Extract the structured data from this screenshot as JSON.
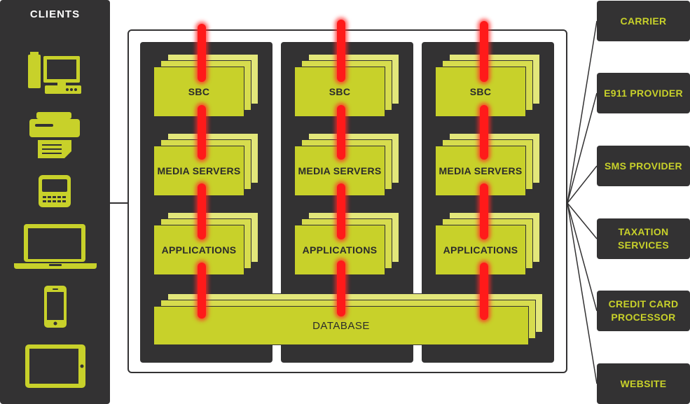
{
  "clients": {
    "title": "CLIENTS",
    "icons": [
      "desktop-computer-icon",
      "printer-fax-icon",
      "feature-phone-icon",
      "laptop-icon",
      "smartphone-icon",
      "tablet-icon"
    ]
  },
  "columns": [
    {
      "sbc": "SBC",
      "media": "MEDIA SERVERS",
      "apps": "APPLICATIONS"
    },
    {
      "sbc": "SBC",
      "media": "MEDIA SERVERS",
      "apps": "APPLICATIONS"
    },
    {
      "sbc": "SBC",
      "media": "MEDIA SERVERS",
      "apps": "APPLICATIONS"
    }
  ],
  "database": {
    "label": "DATABASE"
  },
  "services": [
    {
      "label": "CARRIER"
    },
    {
      "label": "E911 PROVIDER"
    },
    {
      "label": "SMS PROVIDER"
    },
    {
      "label": "TAXATION\nSERVICES"
    },
    {
      "label": "CREDIT CARD\nPROCESSOR"
    },
    {
      "label": "WEBSITE"
    }
  ],
  "colors": {
    "dark": "#333233",
    "accent": "#c8d12a",
    "pipe": "#ff1a1a",
    "text_light": "#ffffff"
  }
}
